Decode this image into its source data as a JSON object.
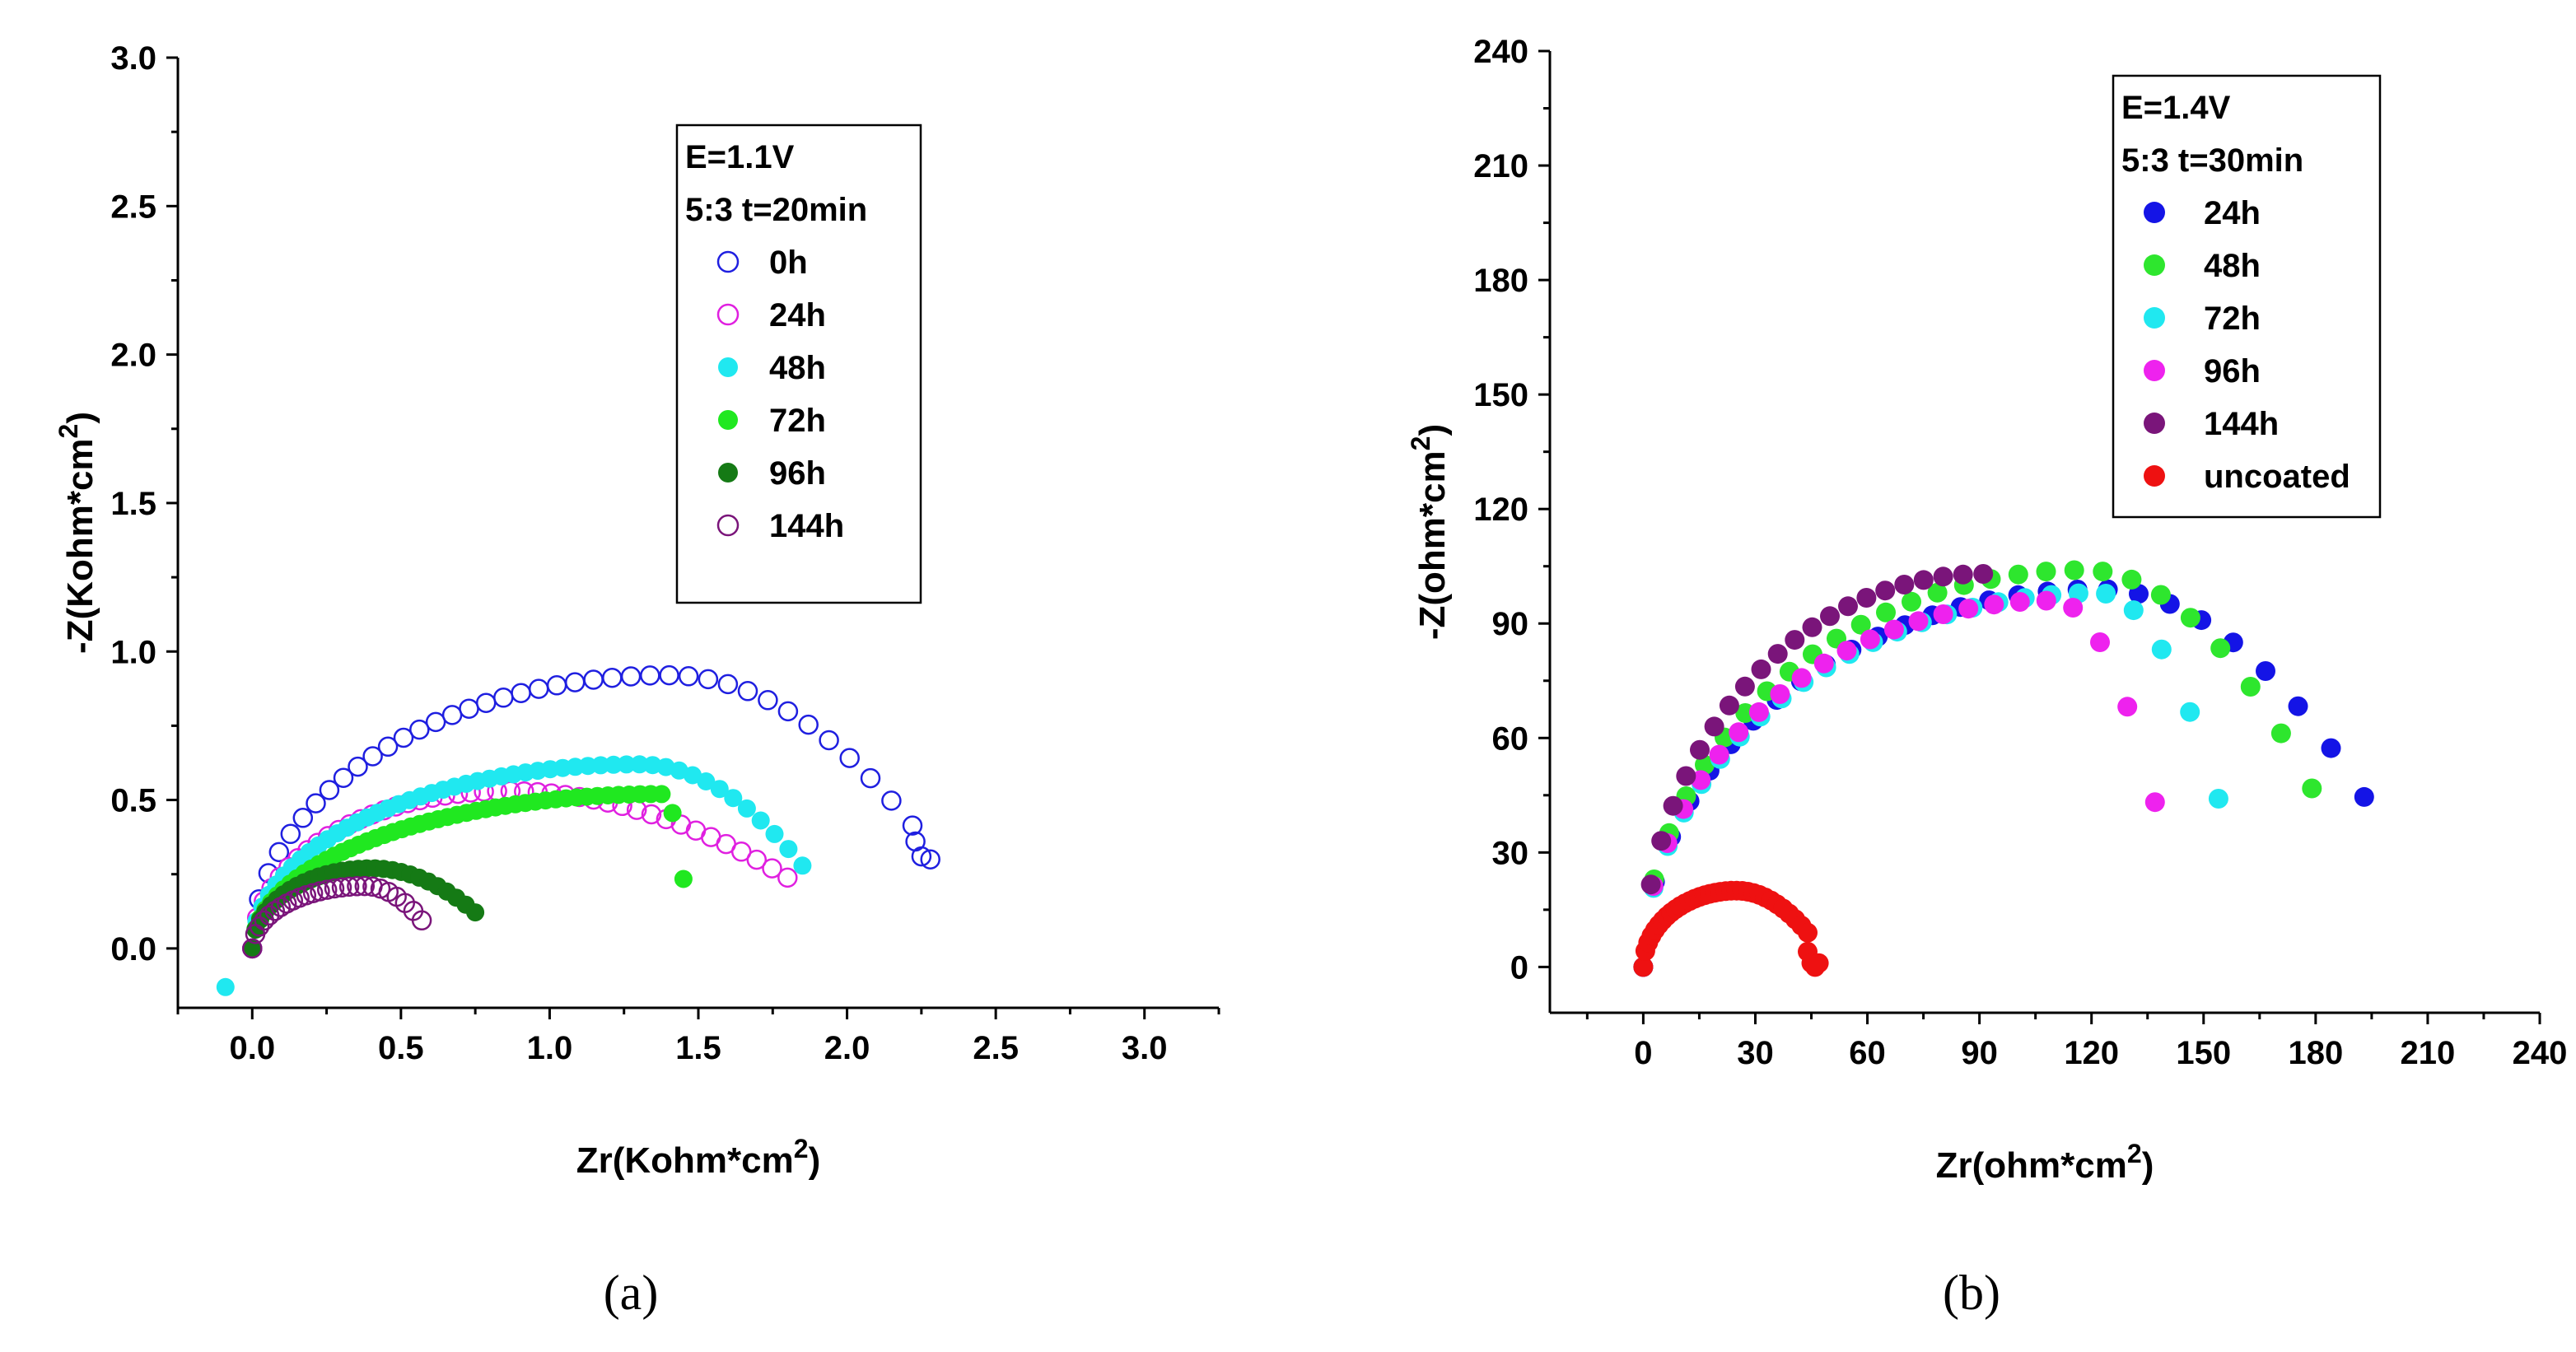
{
  "figure": {
    "captions": [
      "(a)",
      "(b)"
    ]
  },
  "chart_data": [
    {
      "type": "scatter",
      "panel_label": "(a)",
      "xlabel": "Zr(Kohm*cm",
      "xlabel_sup": "2",
      "xlabel_end": ")",
      "ylabel": "-Z(Kohm*cm",
      "ylabel_sup": "2",
      "ylabel_end": ")",
      "xlim": [
        -0.25,
        3.25
      ],
      "ylim": [
        -0.2,
        3.0
      ],
      "xticks": [
        0.0,
        0.5,
        1.0,
        1.5,
        2.0,
        2.5,
        3.0
      ],
      "xtick_labels": [
        "0.0",
        "0.5",
        "1.0",
        "1.5",
        "2.0",
        "2.5",
        "3.0"
      ],
      "yticks": [
        0.0,
        0.5,
        1.0,
        1.5,
        2.0,
        2.5,
        3.0
      ],
      "ytick_labels": [
        "0.0",
        "0.5",
        "1.0",
        "1.5",
        "2.0",
        "2.5",
        "3.0"
      ],
      "legend_header": [
        "E=1.1V",
        "5:3 t=20min"
      ],
      "legend_position": "top-center",
      "series": [
        {
          "name": "0h",
          "color": "#1f1fe0",
          "filled": false,
          "arc": {
            "end_x": 2.22,
            "peak_x": 1.4,
            "peak_y": 0.92,
            "count": 40
          },
          "points": [
            [
              2.23,
              0.36
            ],
            [
              2.25,
              0.31
            ],
            [
              2.28,
              0.3
            ]
          ]
        },
        {
          "name": "24h",
          "color": "#e020e0",
          "filled": false,
          "arc": {
            "end_x": 1.8,
            "peak_x": 0.85,
            "peak_y": 0.53,
            "count": 44
          },
          "points": []
        },
        {
          "name": "48h",
          "color": "#20e8f0",
          "filled": true,
          "arc": {
            "end_x": 1.85,
            "peak_x": 1.3,
            "peak_y": 0.62,
            "count": 50
          },
          "points": [
            [
              -0.09,
              -0.13
            ]
          ]
        },
        {
          "name": "72h",
          "color": "#20e820",
          "filled": true,
          "arc": {
            "end_x": 1.45,
            "peak_x": 1.38,
            "peak_y": 0.52,
            "count": 50
          },
          "points": []
        },
        {
          "name": "96h",
          "color": "#157a15",
          "filled": true,
          "arc": {
            "end_x": 0.75,
            "peak_x": 0.4,
            "peak_y": 0.27,
            "count": 30
          },
          "points": []
        },
        {
          "name": "144h",
          "color": "#7a157a",
          "filled": false,
          "arc": {
            "end_x": 0.57,
            "peak_x": 0.38,
            "peak_y": 0.21,
            "count": 26
          },
          "points": []
        }
      ]
    },
    {
      "type": "scatter",
      "panel_label": "(b)",
      "xlabel": "Zr(ohm*cm",
      "xlabel_sup": "2",
      "xlabel_end": ")",
      "ylabel": "-Z(ohm*cm",
      "ylabel_sup": "2",
      "ylabel_end": ")",
      "xlim": [
        -25,
        240
      ],
      "ylim": [
        -12,
        240
      ],
      "xticks": [
        0,
        30,
        60,
        90,
        120,
        150,
        180,
        210,
        240
      ],
      "xtick_labels": [
        "0",
        "30",
        "60",
        "90",
        "120",
        "150",
        "180",
        "210",
        "240"
      ],
      "yticks": [
        0,
        30,
        60,
        90,
        120,
        150,
        180,
        210,
        240
      ],
      "ytick_labels": [
        "0",
        "30",
        "60",
        "90",
        "120",
        "150",
        "180",
        "210",
        "240"
      ],
      "legend_header": [
        "E=1.4V",
        "5:3 t=30min"
      ],
      "legend_position": "top-right",
      "series": [
        {
          "name": "24h",
          "color": "#1414e6",
          "filled": true,
          "arc": {
            "end_x": 193,
            "peak_x": 122,
            "peak_y": 99,
            "count": 28
          },
          "points": []
        },
        {
          "name": "48h",
          "color": "#2ee62e",
          "filled": true,
          "arc": {
            "end_x": 179,
            "peak_x": 118,
            "peak_y": 104,
            "count": 28
          },
          "points": []
        },
        {
          "name": "72h",
          "color": "#20e8f0",
          "filled": true,
          "arc": {
            "end_x": 154,
            "peak_x": 122,
            "peak_y": 98,
            "count": 26
          },
          "points": []
        },
        {
          "name": "96h",
          "color": "#ee22ee",
          "filled": true,
          "arc": {
            "end_x": 137,
            "peak_x": 110,
            "peak_y": 96,
            "count": 24
          },
          "points": []
        },
        {
          "name": "144h",
          "color": "#7a157a",
          "filled": true,
          "arc": {
            "end_x": 91,
            "peak_x": 91,
            "peak_y": 103,
            "count": 22
          },
          "points": []
        },
        {
          "name": "uncoated",
          "color": "#ee1111",
          "filled": true,
          "arc": {
            "end_x": 44,
            "peak_x": 25,
            "peak_y": 20,
            "count": 34
          },
          "points": [
            [
              44,
              4
            ],
            [
              45,
              1
            ],
            [
              47,
              1
            ],
            [
              46,
              0
            ]
          ]
        }
      ]
    }
  ]
}
